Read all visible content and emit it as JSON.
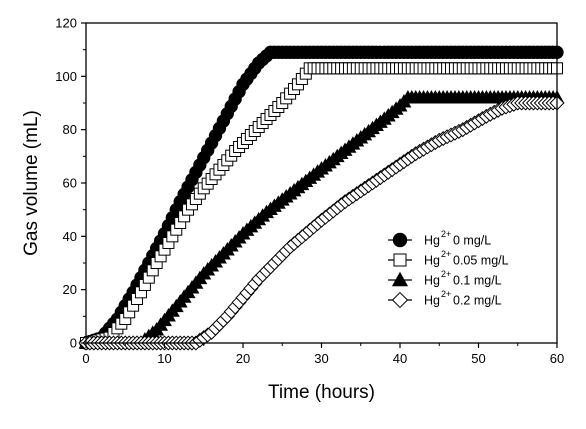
{
  "chart_data": {
    "type": "scatter",
    "xlabel": "Time (hours)",
    "ylabel": "Gas volume (mL)",
    "xlim": [
      0,
      60
    ],
    "ylim": [
      0,
      120
    ],
    "xticks": [
      "0",
      "10",
      "20",
      "30",
      "40",
      "50",
      "60"
    ],
    "yticks": [
      "0",
      "20",
      "40",
      "60",
      "80",
      "100",
      "120"
    ],
    "grid": false,
    "legend_position": "bottom-right",
    "series": [
      {
        "name_base": "Hg",
        "name_sup": "2+",
        "name_rest": " 0 mg/L",
        "marker": "circle",
        "filled": true,
        "points": [
          [
            0,
            0
          ],
          [
            2,
            2
          ],
          [
            4,
            9
          ],
          [
            6,
            19
          ],
          [
            8,
            30
          ],
          [
            10,
            41
          ],
          [
            12,
            53
          ],
          [
            14,
            64
          ],
          [
            16,
            75
          ],
          [
            18,
            86
          ],
          [
            20,
            97
          ],
          [
            22,
            105
          ],
          [
            23.5,
            109
          ],
          [
            30,
            109
          ],
          [
            40,
            109
          ],
          [
            50,
            109
          ],
          [
            60,
            109
          ]
        ]
      },
      {
        "name_base": "Hg",
        "name_sup": "2+",
        "name_rest": " 0.05 mg/L",
        "marker": "square",
        "filled": false,
        "points": [
          [
            0,
            0
          ],
          [
            3,
            2
          ],
          [
            5,
            9
          ],
          [
            7,
            19
          ],
          [
            9,
            30
          ],
          [
            11,
            40
          ],
          [
            13,
            50
          ],
          [
            15,
            58
          ],
          [
            17,
            65
          ],
          [
            19,
            72
          ],
          [
            21,
            78
          ],
          [
            23,
            84
          ],
          [
            25,
            90
          ],
          [
            27,
            97
          ],
          [
            28.5,
            103
          ],
          [
            35,
            103
          ],
          [
            45,
            103
          ],
          [
            55,
            103
          ],
          [
            60,
            103
          ]
        ]
      },
      {
        "name_base": "Hg",
        "name_sup": "2+",
        "name_rest": " 0.1 mg/L",
        "marker": "triangle",
        "filled": true,
        "points": [
          [
            0,
            0
          ],
          [
            7,
            0
          ],
          [
            9,
            5
          ],
          [
            11,
            12
          ],
          [
            13,
            19
          ],
          [
            15,
            26
          ],
          [
            17,
            32
          ],
          [
            20,
            41
          ],
          [
            23,
            49
          ],
          [
            26,
            56
          ],
          [
            29,
            63
          ],
          [
            32,
            70
          ],
          [
            35,
            77
          ],
          [
            38,
            84
          ],
          [
            40,
            89
          ],
          [
            41,
            92
          ],
          [
            50,
            92
          ],
          [
            60,
            92
          ]
        ]
      },
      {
        "name_base": "Hg",
        "name_sup": "2+",
        "name_rest": " 0.2 mg/L",
        "marker": "diamond",
        "filled": false,
        "points": [
          [
            0,
            0
          ],
          [
            14,
            0
          ],
          [
            16,
            4
          ],
          [
            18,
            10
          ],
          [
            20,
            17
          ],
          [
            22,
            24
          ],
          [
            24,
            30
          ],
          [
            26,
            36
          ],
          [
            28,
            41
          ],
          [
            30,
            46
          ],
          [
            33,
            53
          ],
          [
            36,
            59
          ],
          [
            39,
            65
          ],
          [
            42,
            71
          ],
          [
            45,
            76
          ],
          [
            48,
            80
          ],
          [
            51,
            85
          ],
          [
            53,
            88
          ],
          [
            55,
            90
          ],
          [
            57,
            90
          ],
          [
            60,
            90
          ]
        ]
      }
    ]
  }
}
